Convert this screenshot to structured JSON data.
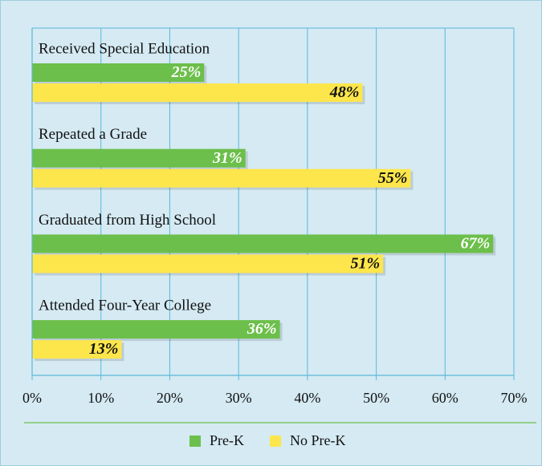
{
  "chart_data": {
    "type": "barh",
    "categories": [
      "Received Special Education",
      "Repeated a Grade",
      "Graduated from High School",
      "Attended Four-Year College"
    ],
    "series": [
      {
        "name": "Pre-K",
        "color": "#6cbf4a",
        "values": [
          25,
          31,
          67,
          36
        ],
        "value_labels": [
          "25%",
          "31%",
          "67%",
          "36%"
        ]
      },
      {
        "name": "No Pre-K",
        "color": "#fde64b",
        "values": [
          48,
          55,
          51,
          13
        ],
        "value_labels": [
          "48%",
          "55%",
          "51%",
          "13%"
        ]
      }
    ],
    "xlim": [
      0,
      70
    ],
    "xticks": [
      {
        "value": 0,
        "label": "0%"
      },
      {
        "value": 10,
        "label": "10%"
      },
      {
        "value": 20,
        "label": "20%"
      },
      {
        "value": 30,
        "label": "30%"
      },
      {
        "value": 40,
        "label": "40%"
      },
      {
        "value": 50,
        "label": "50%"
      },
      {
        "value": 60,
        "label": "60%"
      },
      {
        "value": 70,
        "label": "70%"
      }
    ],
    "grid": true,
    "legend": "bottom"
  }
}
